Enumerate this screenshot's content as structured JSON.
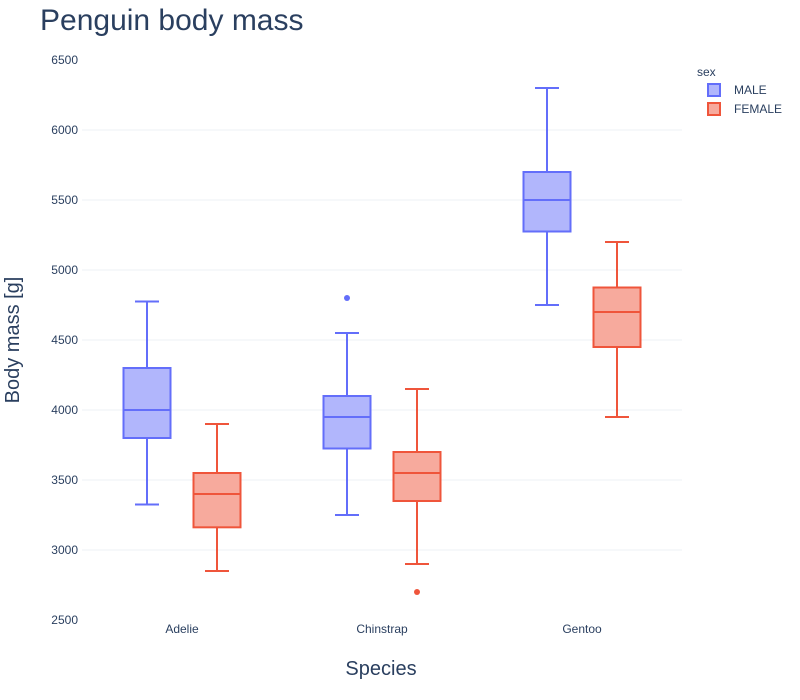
{
  "chart_data": {
    "type": "box",
    "title": "Penguin body mass",
    "xlabel": "Species",
    "ylabel": "Body mass [g]",
    "categories": [
      "Adelie",
      "Chinstrap",
      "Gentoo"
    ],
    "ylim": [
      2500,
      6500
    ],
    "yticks": [
      2500,
      3000,
      3500,
      4000,
      4500,
      5000,
      5500,
      6000,
      6500
    ],
    "grid": true,
    "legend": {
      "title": "sex",
      "placement": "top-right"
    },
    "series": [
      {
        "name": "MALE",
        "line_color": "#636efa",
        "fill_color": "#b1b6fc",
        "boxes": [
          {
            "category": "Adelie",
            "min": 3325,
            "q1": 3800,
            "median": 4000,
            "q3": 4300,
            "max": 4775,
            "outliers": []
          },
          {
            "category": "Chinstrap",
            "min": 3250,
            "q1": 3725,
            "median": 3950,
            "q3": 4100,
            "max": 4550,
            "outliers": [
              4800
            ]
          },
          {
            "category": "Gentoo",
            "min": 4750,
            "q1": 5275,
            "median": 5500,
            "q3": 5700,
            "max": 6300,
            "outliers": []
          }
        ]
      },
      {
        "name": "FEMALE",
        "line_color": "#ef553b",
        "fill_color": "#f7aa9d",
        "boxes": [
          {
            "category": "Adelie",
            "min": 2850,
            "q1": 3162,
            "median": 3400,
            "q3": 3550,
            "max": 3900,
            "outliers": []
          },
          {
            "category": "Chinstrap",
            "min": 2900,
            "q1": 3350,
            "median": 3550,
            "q3": 3700,
            "max": 4150,
            "outliers": [
              2700
            ]
          },
          {
            "category": "Gentoo",
            "min": 3950,
            "q1": 4450,
            "median": 4700,
            "q3": 4875,
            "max": 5200,
            "outliers": []
          }
        ]
      }
    ]
  }
}
